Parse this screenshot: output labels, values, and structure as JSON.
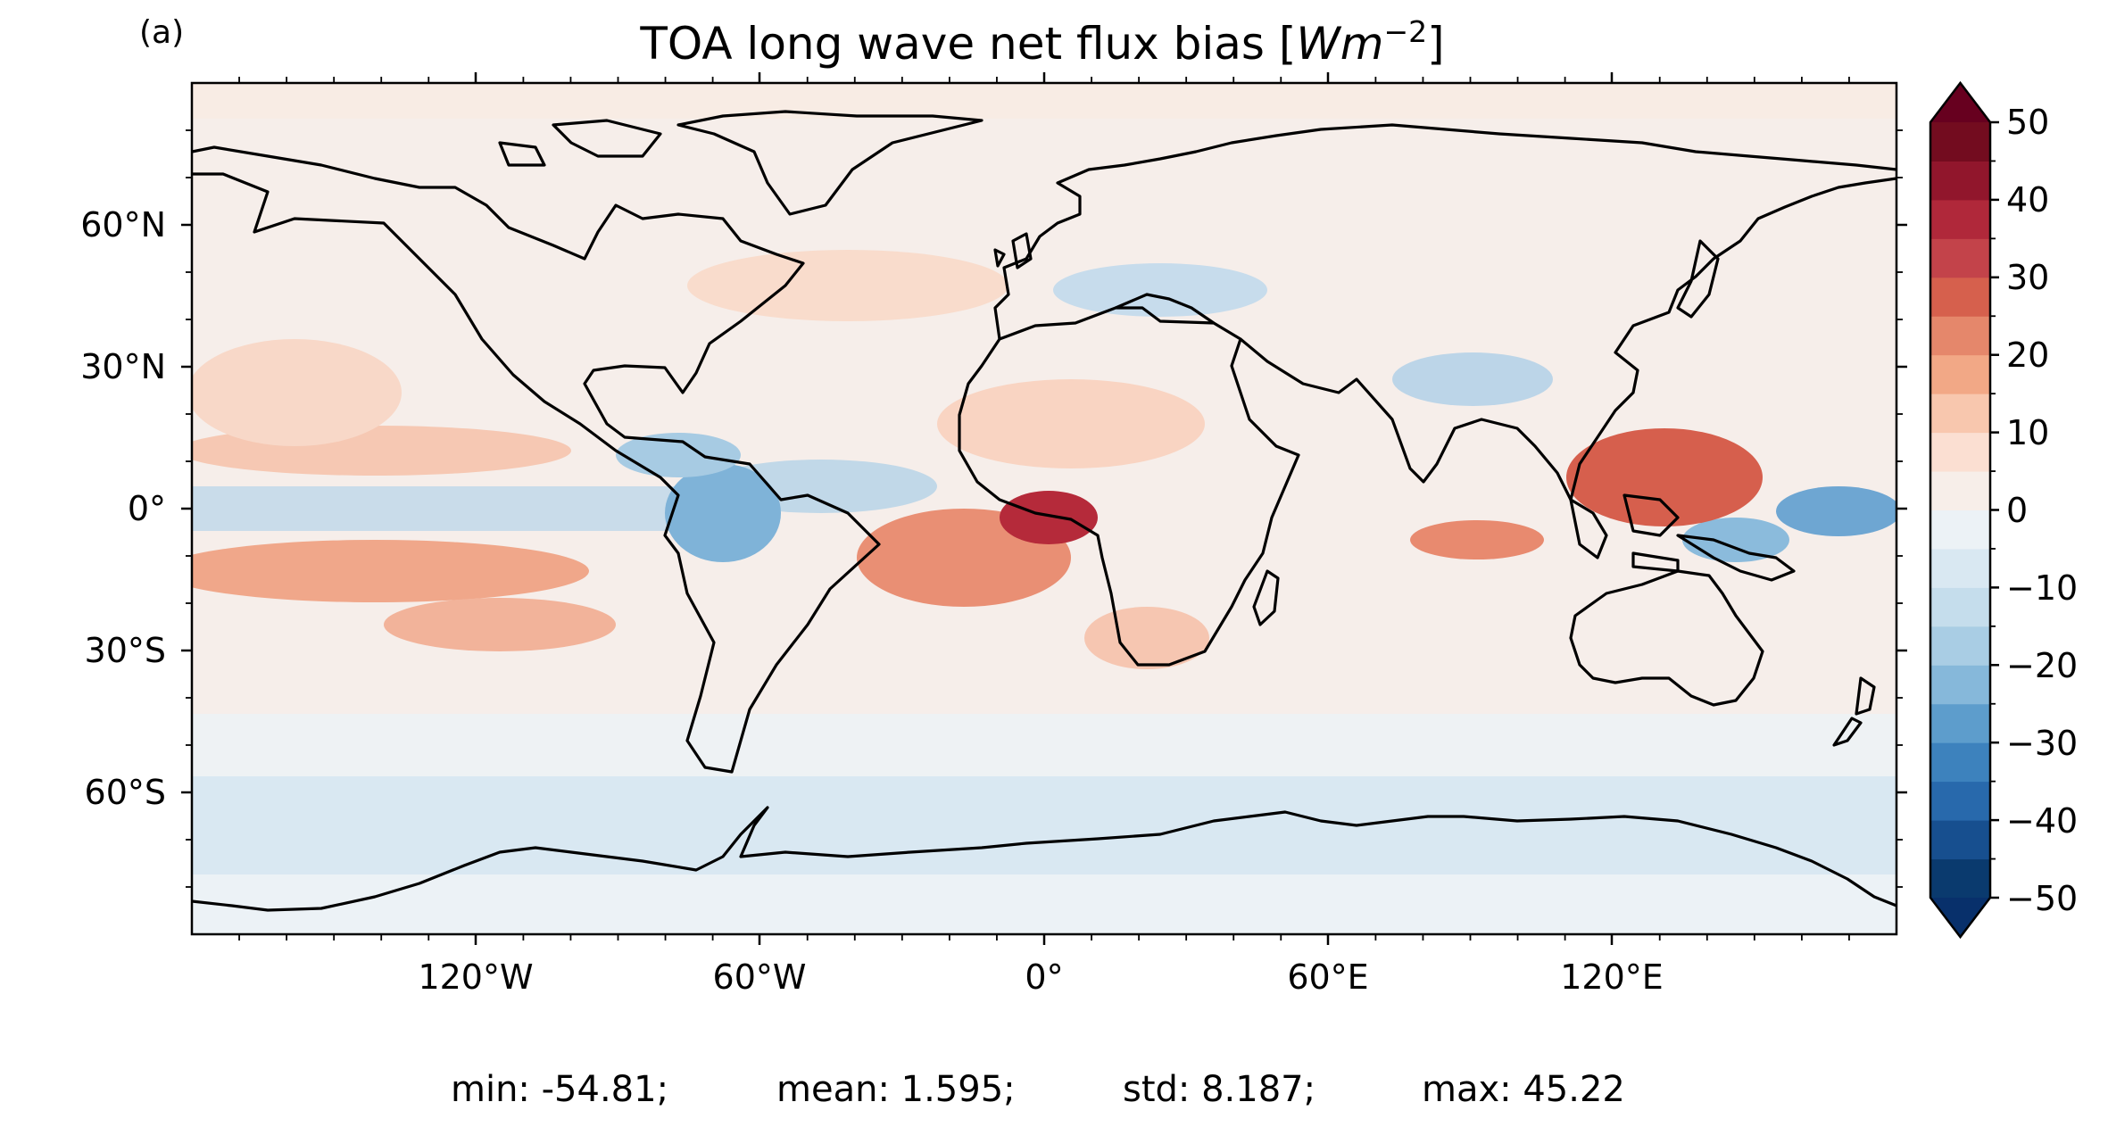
{
  "panel_label": "(a)",
  "title": {
    "main": "TOA long wave net flux bias [",
    "var": "Wm",
    "exp": "−2",
    "close": "]"
  },
  "axes": {
    "lat_ticks": [
      "60°N",
      "30°N",
      "0°",
      "30°S",
      "60°S"
    ],
    "lon_ticks": [
      "120°W",
      "60°W",
      "0°",
      "60°E",
      "120°E"
    ]
  },
  "colorbar": {
    "labels": [
      "50",
      "40",
      "30",
      "20",
      "10",
      "0",
      "−10",
      "−20",
      "−30",
      "−40",
      "−50"
    ],
    "min": -50,
    "max": 50,
    "step": 5,
    "extend": "both",
    "colormap": "RdBu_r",
    "colors_low_to_high": [
      "#0a3a6e",
      "#174f8f",
      "#2869ac",
      "#3d82bd",
      "#5d9dcc",
      "#86b8da",
      "#a9cde4",
      "#c5ddec",
      "#d9e8f2",
      "#ecf2f6",
      "#f7eee9",
      "#fbdfd2",
      "#f8c7ae",
      "#f2a886",
      "#e5876b",
      "#d6604d",
      "#c3434a",
      "#b0283a",
      "#91162c",
      "#730c1f"
    ],
    "extend_low_color": "#08306b",
    "extend_high_color": "#67001f"
  },
  "stats": {
    "min": "min: -54.81;",
    "mean": "mean: 1.595;",
    "std": "std: 8.187;",
    "max": "max: 45.22"
  }
}
